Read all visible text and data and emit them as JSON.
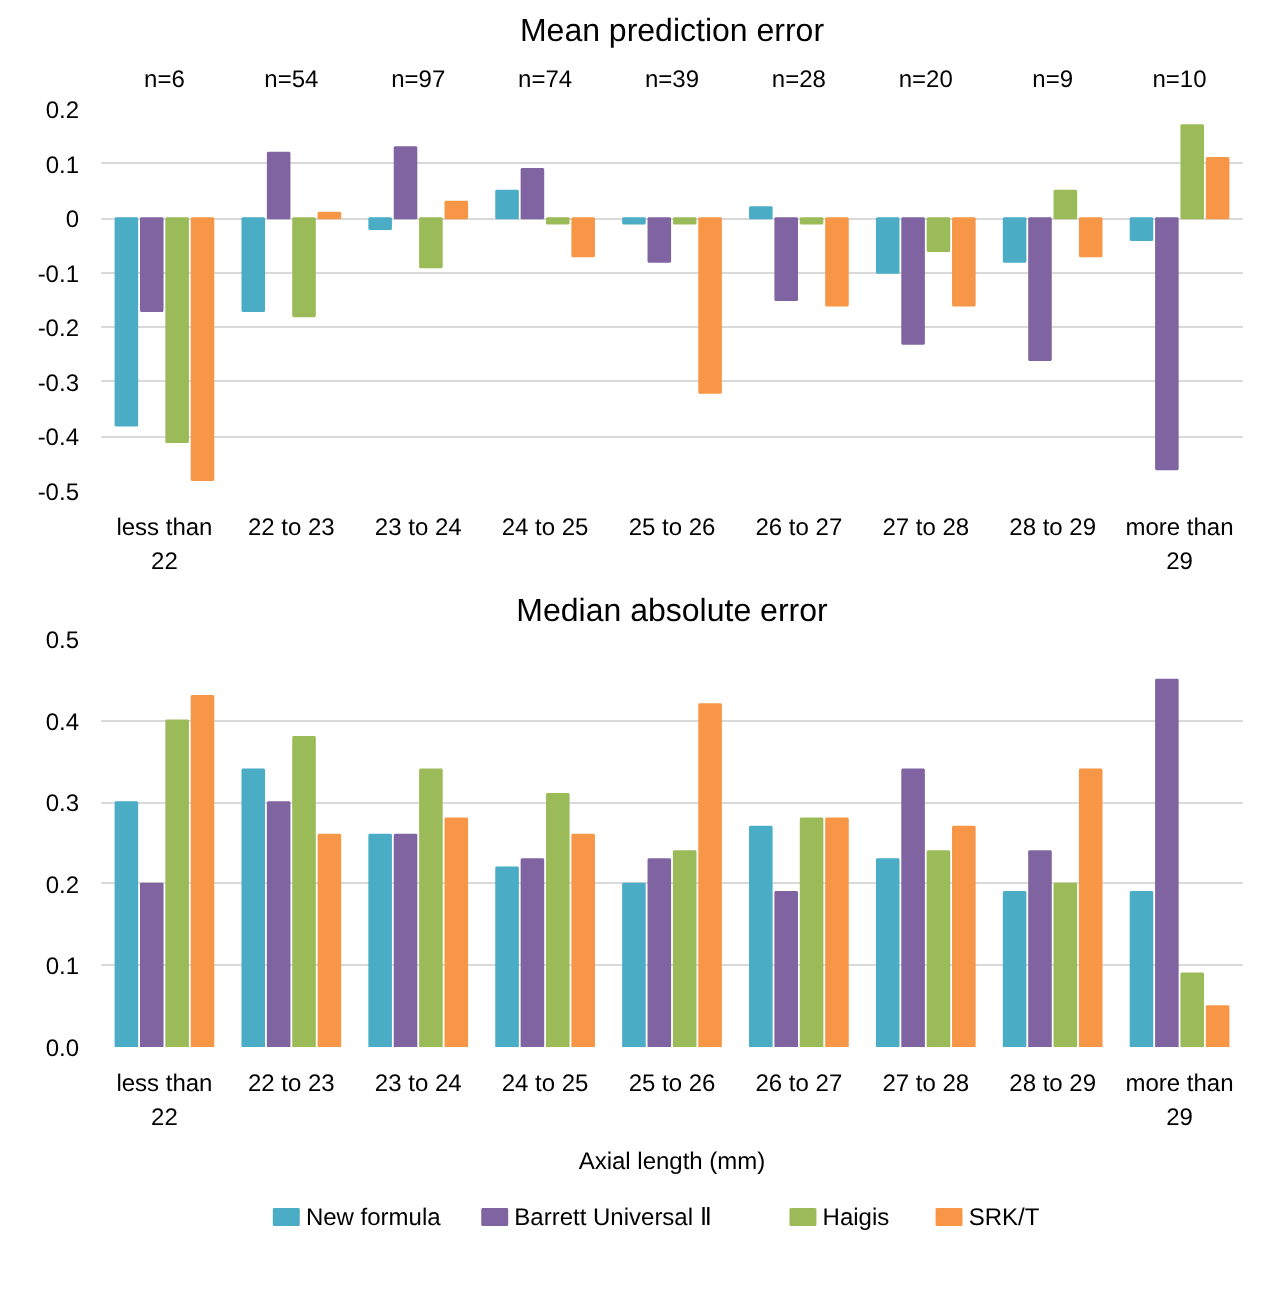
{
  "chart_data": [
    {
      "type": "bar",
      "title": "Mean prediction error",
      "categories": [
        "less than 22",
        "22 to 23",
        "23 to 24",
        "24 to 25",
        "25 to 26",
        "26 to 27",
        "27 to 28",
        "28 to 29",
        "more than 29"
      ],
      "series": [
        {
          "color": "#4bacc6",
          "values": [
            -0.38,
            -0.17,
            -0.02,
            0.05,
            -0.01,
            0.02,
            -0.1,
            -0.08,
            -0.04
          ]
        },
        {
          "color": "#8064a2",
          "values": [
            -0.17,
            0.12,
            0.13,
            0.09,
            -0.08,
            -0.15,
            -0.23,
            -0.26,
            -0.46
          ]
        },
        {
          "color": "#9bbb59",
          "values": [
            -0.41,
            -0.18,
            -0.09,
            -0.01,
            -0.01,
            -0.01,
            -0.06,
            0.05,
            0.17
          ]
        },
        {
          "color": "#f79646",
          "values": [
            -0.48,
            0.01,
            0.03,
            -0.07,
            -0.32,
            -0.16,
            -0.16,
            -0.07,
            0.11
          ]
        }
      ],
      "ylim": [
        -0.5,
        0.2
      ],
      "yticks": [
        -0.5,
        -0.4,
        -0.3,
        -0.2,
        -0.1,
        0,
        0.1,
        0.2
      ],
      "grid": "y",
      "annotations": [
        "n=6",
        "n=54",
        "n=97",
        "n=74",
        "n=39",
        "n=28",
        "n=20",
        "n=9",
        "n=10"
      ]
    },
    {
      "type": "bar",
      "title": "Median absolute error",
      "xlabel": "Axial length (mm)",
      "categories": [
        "less than 22",
        "22 to 23",
        "23 to 24",
        "24 to 25",
        "25 to 26",
        "26 to 27",
        "27 to 28",
        "28 to 29",
        "more than 29"
      ],
      "series": [
        {
          "name": "New formula",
          "color": "#4bacc6",
          "values": [
            0.3,
            0.34,
            0.26,
            0.22,
            0.2,
            0.27,
            0.23,
            0.19,
            0.19
          ]
        },
        {
          "name": "Barrett Universal Ⅱ",
          "color": "#8064a2",
          "values": [
            0.2,
            0.3,
            0.26,
            0.23,
            0.23,
            0.19,
            0.34,
            0.24,
            0.45
          ]
        },
        {
          "name": "Haigis",
          "color": "#9bbb59",
          "values": [
            0.4,
            0.38,
            0.34,
            0.31,
            0.24,
            0.28,
            0.24,
            0.2,
            0.09
          ]
        },
        {
          "name": "SRK/T",
          "color": "#f79646",
          "values": [
            0.43,
            0.26,
            0.28,
            0.26,
            0.42,
            0.28,
            0.27,
            0.34,
            0.05
          ]
        }
      ],
      "ylim": [
        0,
        0.5
      ],
      "yticks": [
        {
          "value": 0,
          "label": "0.0"
        },
        {
          "value": 0.1,
          "label": "0.1"
        },
        {
          "value": 0.2,
          "label": "0.2"
        },
        {
          "value": 0.3,
          "label": "0.3"
        },
        {
          "value": 0.4,
          "label": "0.4"
        },
        {
          "value": 0.5,
          "label": "0.5"
        }
      ],
      "grid": "y",
      "legend": "bottom"
    }
  ]
}
